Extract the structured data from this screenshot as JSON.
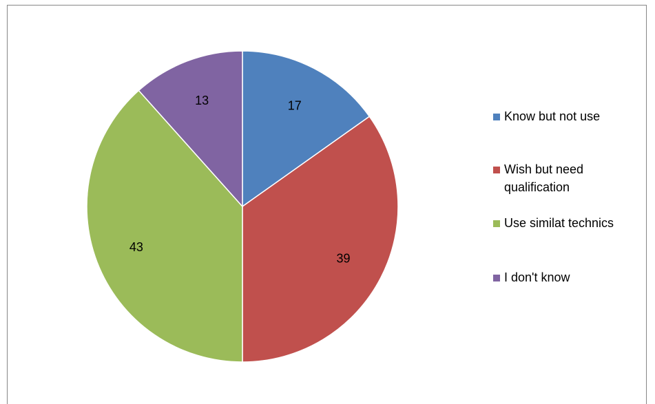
{
  "chart_data": {
    "type": "pie",
    "title": "",
    "categories": [
      "Know but not use",
      "Wish but need\nqualification",
      "Use similat technics",
      "I don't know"
    ],
    "values": [
      17,
      39,
      43,
      13
    ],
    "colors": [
      "#4F81BD",
      "#C0504D",
      "#9BBB59",
      "#8064A2"
    ],
    "legend_position": "right",
    "start_angle": "12 o'clock",
    "direction": "clockwise"
  }
}
